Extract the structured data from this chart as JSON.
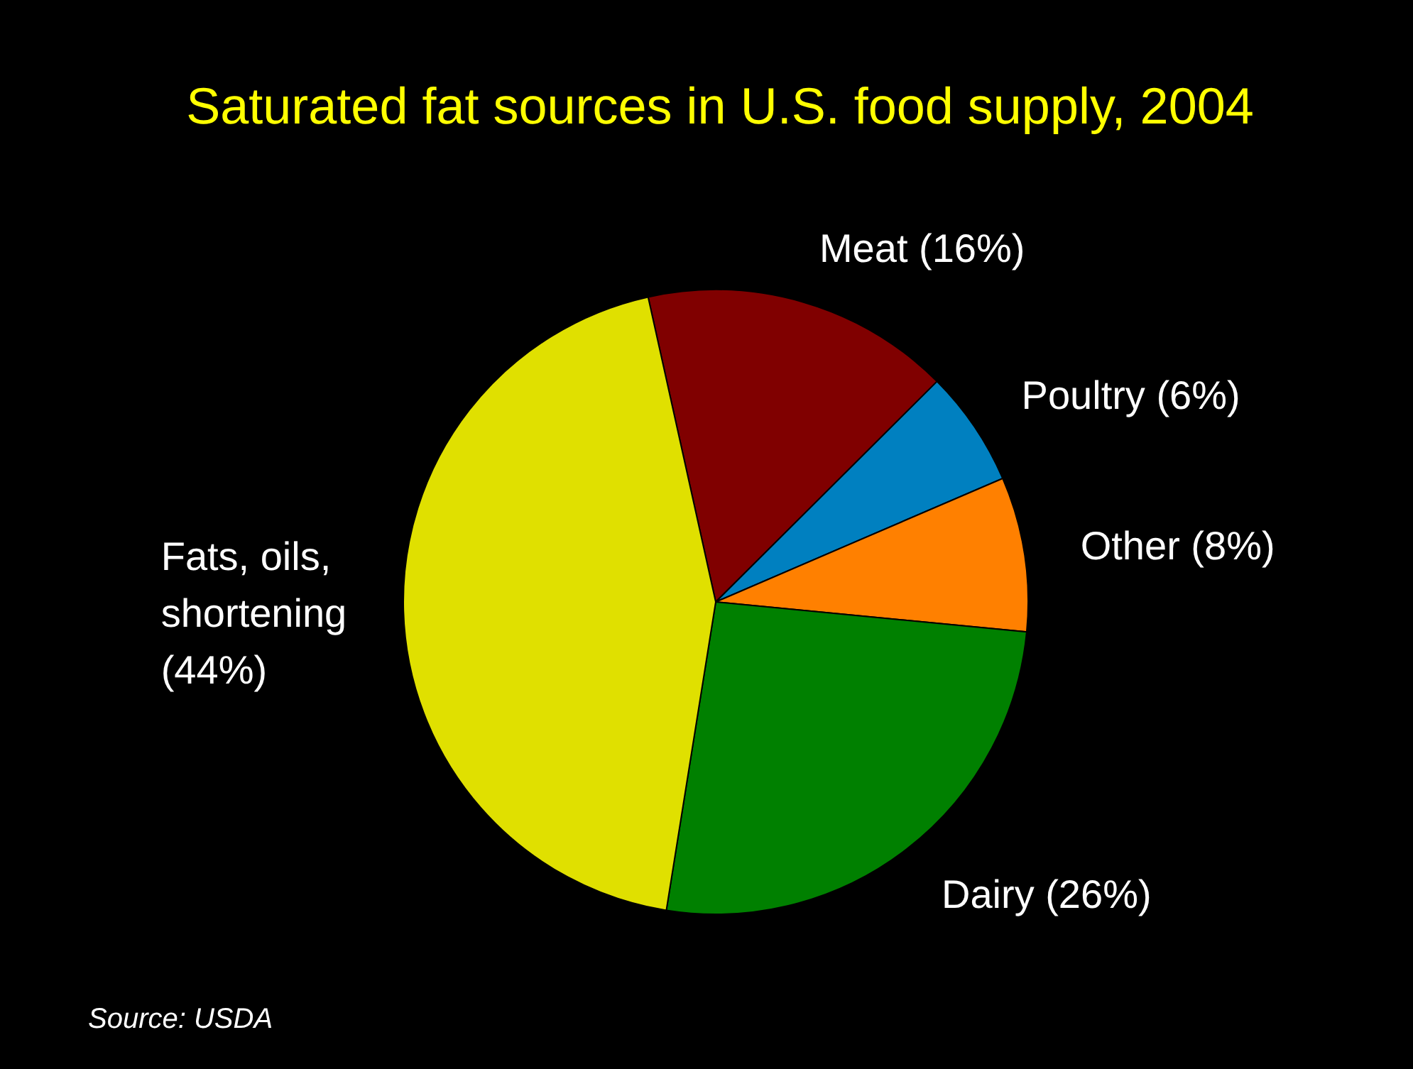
{
  "chart_data": {
    "type": "pie",
    "title": "Saturated fat sources in U.S. food supply, 2004",
    "categories": [
      "Meat (16%)",
      "Poultry (6%)",
      "Other (8%)",
      "Dairy (26%)",
      "Fats, oils, shortening (44%)"
    ],
    "values": [
      16,
      6,
      8,
      26,
      44
    ],
    "colors": [
      "#800000",
      "#0080c0",
      "#ff8000",
      "#008000",
      "#e0e000"
    ],
    "annotations": [
      "Source: USDA"
    ]
  }
}
